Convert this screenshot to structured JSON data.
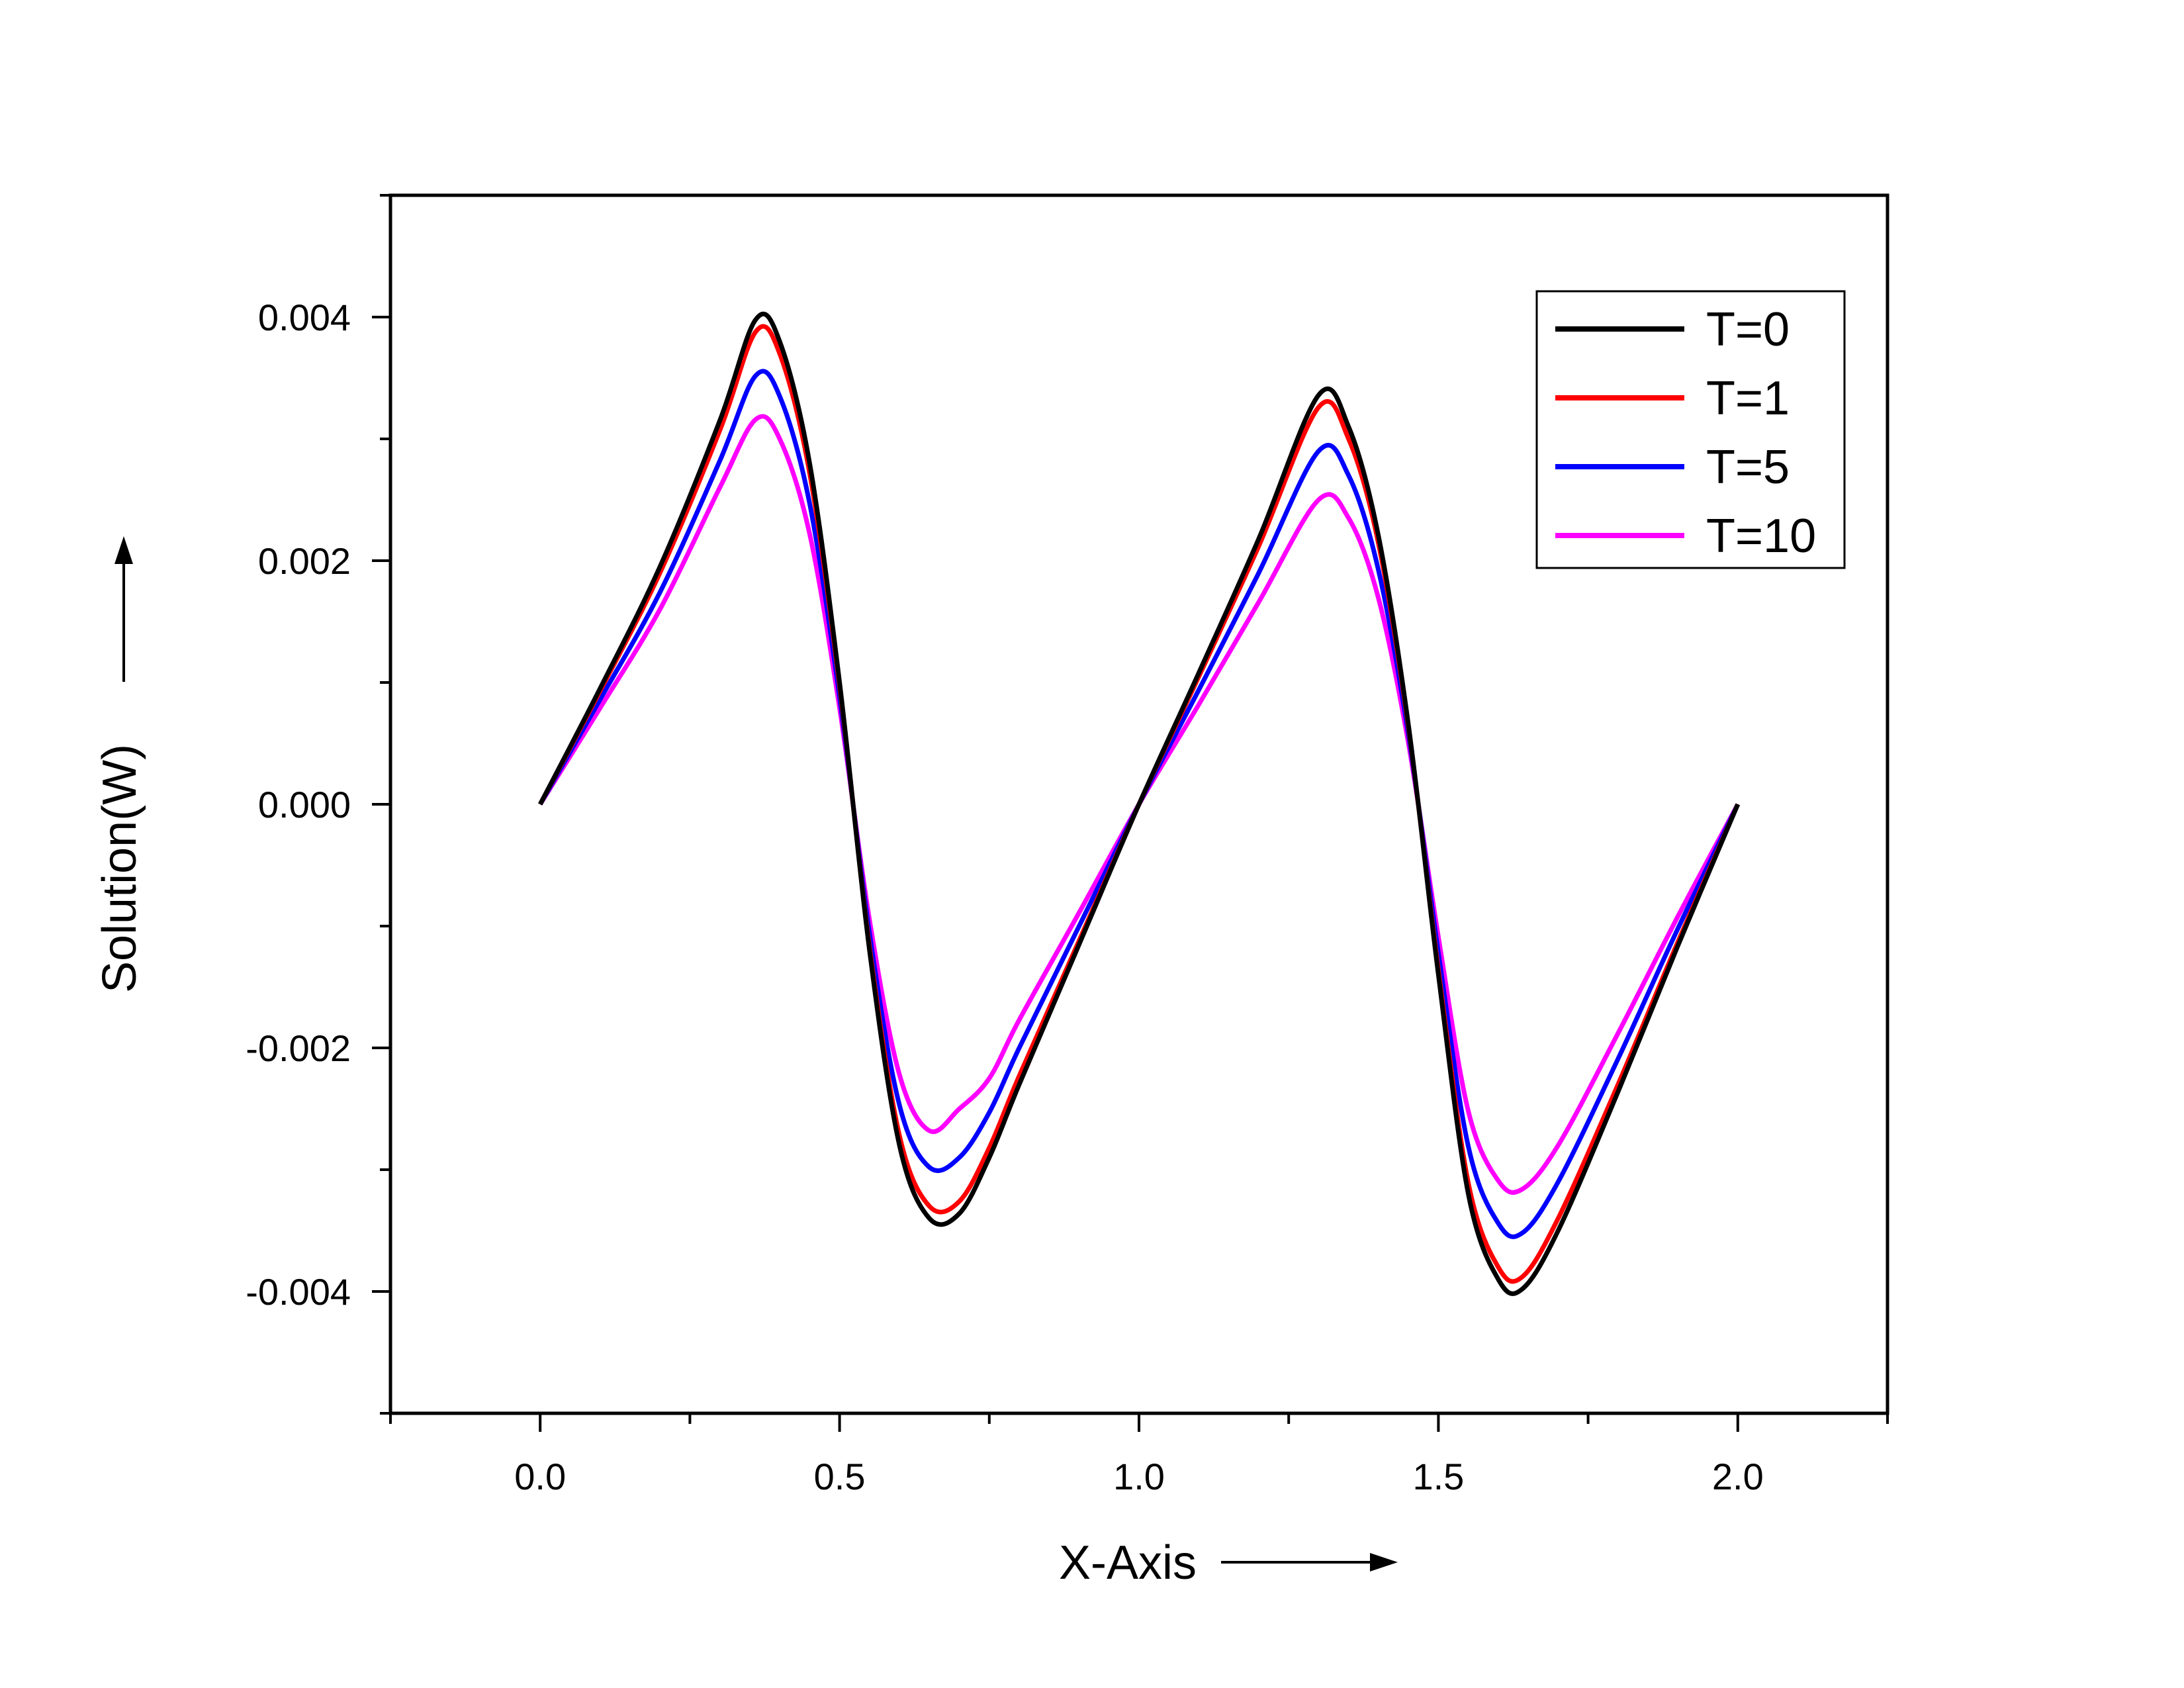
{
  "chart_data": {
    "type": "line",
    "title": "",
    "xlabel": "X-Axis",
    "ylabel": "Solution(W)",
    "xlim": [
      -0.25,
      2.25
    ],
    "ylim": [
      -0.005,
      0.005
    ],
    "xticks": [
      "0.0",
      "0.5",
      "1.0",
      "1.5",
      "2.0"
    ],
    "yticks": [
      "0.004",
      "0.002",
      "0.000",
      "-0.002",
      "-0.004"
    ],
    "grid": false,
    "legend_position": "top-right",
    "x": [
      0.0,
      0.1,
      0.2,
      0.3,
      0.36,
      0.4,
      0.45,
      0.5,
      0.55,
      0.6,
      0.65,
      0.7,
      0.75,
      0.8,
      0.9,
      1.0,
      1.1,
      1.2,
      1.3,
      1.35,
      1.4,
      1.45,
      1.5,
      1.55,
      1.6,
      1.64,
      1.7,
      1.8,
      1.9,
      2.0
    ],
    "series": [
      {
        "name": "T=0",
        "color": "#000000",
        "values": [
          0.0,
          0.00095,
          0.00195,
          0.00315,
          0.00398,
          0.0038,
          0.0028,
          0.001,
          -0.0012,
          -0.0028,
          -0.0034,
          -0.00336,
          -0.0029,
          -0.0023,
          -0.00115,
          0.0,
          0.00108,
          0.00218,
          0.00336,
          0.0031,
          0.0022,
          0.00065,
          -0.0014,
          -0.0032,
          -0.0039,
          -0.00398,
          -0.0035,
          -0.00236,
          -0.00116,
          0.0
        ]
      },
      {
        "name": "T=1",
        "color": "#ff0000",
        "values": [
          0.0,
          0.00093,
          0.0019,
          0.00307,
          0.00388,
          0.0037,
          0.00272,
          0.00097,
          -0.00117,
          -0.00272,
          -0.0033,
          -0.00326,
          -0.00282,
          -0.00223,
          -0.00112,
          0.0,
          0.00105,
          0.00212,
          0.00326,
          0.003,
          0.00214,
          0.00063,
          -0.00136,
          -0.00311,
          -0.0038,
          -0.00388,
          -0.0034,
          -0.0023,
          -0.00113,
          0.0
        ]
      },
      {
        "name": "T=5",
        "color": "#0000ff",
        "values": [
          0.0,
          0.00086,
          0.00174,
          0.00282,
          0.00352,
          0.00335,
          0.00247,
          0.00088,
          -0.00106,
          -0.00247,
          -0.00298,
          -0.0029,
          -0.00253,
          -0.002,
          -0.001,
          0.0,
          0.00094,
          0.0019,
          0.0029,
          0.0027,
          0.00192,
          0.00057,
          -0.00122,
          -0.00281,
          -0.00344,
          -0.00352,
          -0.0031,
          -0.00209,
          -0.00102,
          0.0
        ]
      },
      {
        "name": "T=10",
        "color": "#ff00ff",
        "values": [
          0.0,
          0.00079,
          0.0016,
          0.0026,
          0.00316,
          0.003,
          0.00222,
          0.00079,
          -0.00095,
          -0.00222,
          -0.00268,
          -0.0025,
          -0.00225,
          -0.00177,
          -0.00089,
          0.0,
          0.00082,
          0.00166,
          0.0025,
          0.00235,
          0.00169,
          0.0005,
          -0.00109,
          -0.00252,
          -0.00309,
          -0.00316,
          -0.0028,
          -0.00188,
          -0.00092,
          0.0
        ]
      }
    ]
  }
}
